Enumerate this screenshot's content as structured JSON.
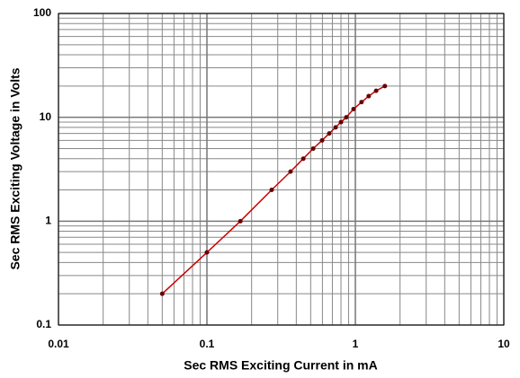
{
  "chart_data": {
    "type": "line",
    "x_label": "Sec RMS Exciting Current in mA",
    "y_label": "Sec RMS Exciting Voltage in Volts",
    "x": [
      0.05,
      0.1,
      0.168,
      0.273,
      0.366,
      0.446,
      0.52,
      0.597,
      0.667,
      0.736,
      0.8,
      0.869,
      0.972,
      1.1,
      1.23,
      1.38,
      1.58
    ],
    "series": [
      {
        "color": "#cc0000",
        "marker_color": "#660000",
        "values": [
          0.2,
          0.5,
          1,
          2,
          3,
          4,
          5,
          6,
          7,
          8,
          9,
          10,
          12,
          14,
          16,
          18,
          20
        ]
      }
    ],
    "xlim": [
      0.01,
      10
    ],
    "ylim": [
      0.1,
      100
    ],
    "xticks": [
      0.01,
      0.1,
      1,
      10
    ],
    "yticks": [
      0.1,
      1,
      10,
      100
    ],
    "log_x": true,
    "log_y": true,
    "grid": true,
    "minor_grid": true
  }
}
